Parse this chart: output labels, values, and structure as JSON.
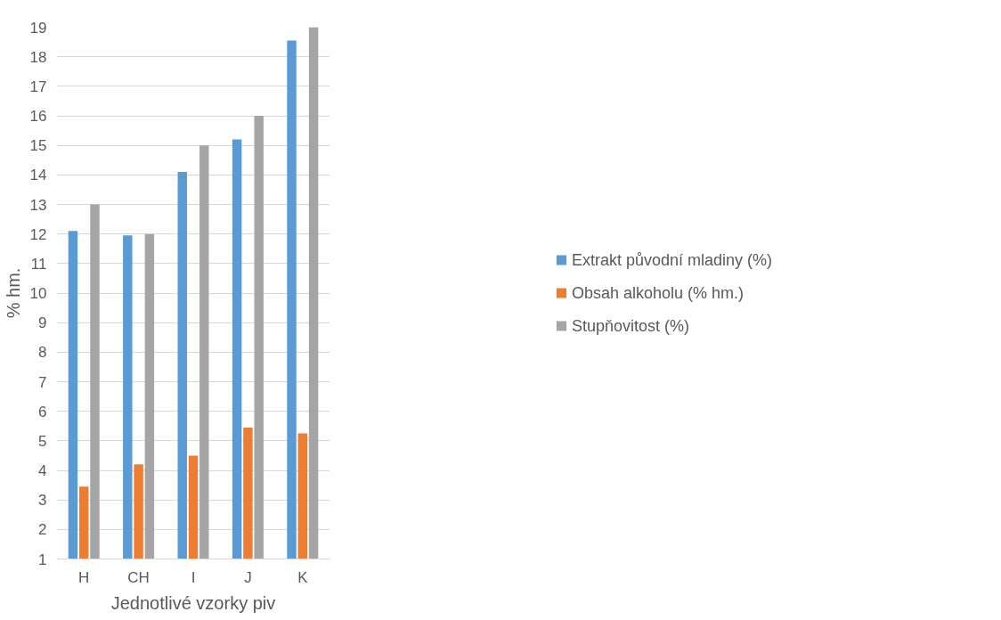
{
  "chart_data": {
    "type": "bar",
    "xlabel": "Jednotlivé vzorky piv",
    "ylabel": "% hm.",
    "categories": [
      "H",
      "CH",
      "I",
      "J",
      "K"
    ],
    "series": [
      {
        "name": "Extrakt původní mladiny (%)",
        "color": "#5b9bd5",
        "values": [
          12.1,
          11.95,
          14.1,
          15.2,
          18.55
        ]
      },
      {
        "name": "Obsah alkoholu (% hm.)",
        "color": "#ed7d31",
        "values": [
          3.45,
          4.2,
          4.5,
          5.45,
          5.25
        ]
      },
      {
        "name": "Stupňovitost (%)",
        "color": "#a5a5a5",
        "values": [
          13,
          12,
          15,
          16,
          19
        ]
      }
    ],
    "ylim": [
      1,
      19
    ],
    "yticks": [
      1,
      2,
      3,
      4,
      5,
      6,
      7,
      8,
      9,
      10,
      11,
      12,
      13,
      14,
      15,
      16,
      17,
      18,
      19
    ],
    "grid": "y",
    "legend": "right"
  }
}
